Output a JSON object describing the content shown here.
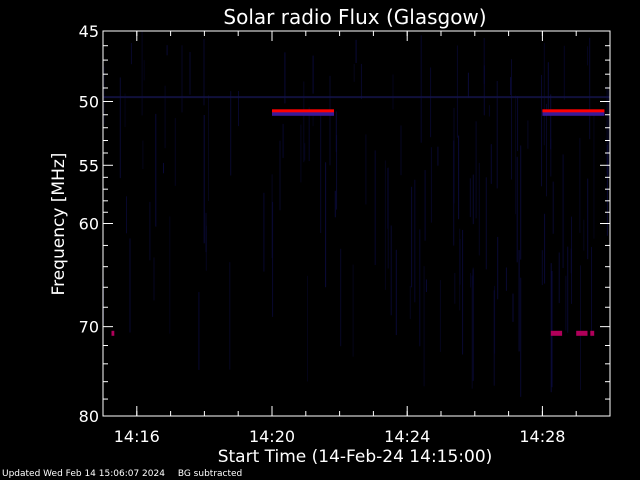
{
  "chart_data": {
    "type": "heatmap",
    "title": "Solar radio Flux (Glasgow)",
    "xlabel": "Start Time (14-Feb-24 14:15:00)",
    "ylabel": "Frequency [MHz]",
    "x_range_minutes": [
      "14:15:00",
      "14:30:00"
    ],
    "x_ticks": [
      "14:16",
      "14:20",
      "14:24",
      "14:28"
    ],
    "y_range": [
      45,
      80
    ],
    "y_ticks": [
      45,
      50,
      55,
      60,
      70,
      80
    ],
    "y_scale": "log",
    "background_color": "#000000",
    "noise_color": "#0a0a3a",
    "features": [
      {
        "label": "",
        "freq_mhz": 50.7,
        "start": "14:20:00",
        "end": "14:21:50",
        "color": "#ff0000"
      },
      {
        "label": "",
        "freq_mhz": 50.7,
        "start": "14:28:00",
        "end": "14:29:50",
        "color": "#ff0000"
      },
      {
        "label": "",
        "freq_mhz": 70.7,
        "start": "14:15:15",
        "end": "14:15:20",
        "color": "#b0005a"
      },
      {
        "label": "",
        "freq_mhz": 70.7,
        "start": "14:28:15",
        "end": "14:28:35",
        "color": "#b0005a"
      },
      {
        "label": "",
        "freq_mhz": 70.7,
        "start": "14:29:00",
        "end": "14:29:20",
        "color": "#b0005a"
      },
      {
        "label": "",
        "freq_mhz": 70.7,
        "start": "14:29:25",
        "end": "14:29:32",
        "color": "#b0005a"
      }
    ]
  },
  "footer": {
    "updated": "Updated Wed Feb 14 15:06:07 2024",
    "note": "BG subtracted"
  }
}
